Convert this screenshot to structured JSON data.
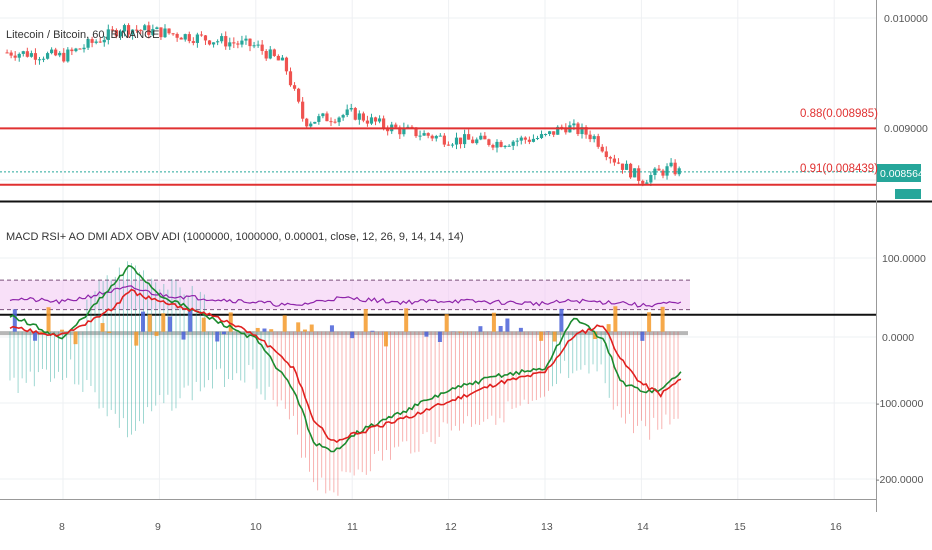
{
  "top_pane": {
    "title": "Litecoin / Bitcoin, 60, BINANCE",
    "price_ticks": [
      "0.010000",
      "0.009000"
    ],
    "last_price": "0.008564",
    "fib_upper": "0.88(0.008985)",
    "fib_lower": "0.91(0.008439)"
  },
  "bottom_pane": {
    "title": "MACD RSI+ AO DMI ADX OBV ADI (1000000, 1000000, 0.00001, close, 12, 26, 9, 14, 14, 14)",
    "ticks": [
      "100.0000",
      "0.0000",
      "-100.0000",
      "-200.0000"
    ]
  },
  "x_axis": {
    "ticks": [
      "8",
      "9",
      "10",
      "11",
      "12",
      "13",
      "14",
      "15",
      "16"
    ]
  },
  "colors": {
    "up": "#26a69a",
    "down": "#ef5350",
    "fib_line": "#e03131",
    "price_badge": "#26a69a",
    "pivot_line": "#26a69a",
    "band_fill": "#f3c6f3",
    "macd_line": "#1b8a2e",
    "signal_line": "#e0201f",
    "rsi_line": "#8e24aa"
  },
  "chart_data": [
    {
      "type": "line",
      "title": "Litecoin / Bitcoin, 60, BINANCE",
      "x": [
        "7.5",
        "8",
        "8.5",
        "8.6",
        "9",
        "9.5",
        "10",
        "10.3",
        "10.5",
        "11",
        "11.3",
        "11.5",
        "12",
        "12.5",
        "13",
        "13.2",
        "13.5",
        "13.7",
        "14",
        "14.3",
        "14.4"
      ],
      "series": [
        {
          "values": [
            0.00972,
            0.00968,
            0.0099,
            0.00996,
            0.00992,
            0.00985,
            0.00978,
            0.0096,
            0.00905,
            0.00913,
            0.00902,
            0.00897,
            0.00888,
            0.00885,
            0.0089,
            0.00901,
            0.00891,
            0.0087,
            0.00849,
            0.0086,
            0.00856
          ]
        }
      ],
      "ylim": [
        0.00835,
        0.01015
      ],
      "yticks": [
        0.01,
        0.009
      ],
      "hlines": [
        0.008985,
        0.008439,
        0.008564
      ]
    },
    {
      "type": "line",
      "title": "MACD RSI+ AO DMI ADX OBV ADI (1000000, 1000000, 0.00001, close, 12, 26, 9, 14, 14, 14)",
      "x": [
        "7.5",
        "8",
        "8.5",
        "8.7",
        "9",
        "9.5",
        "10",
        "10.4",
        "10.6",
        "10.8",
        "11",
        "11.5",
        "12",
        "12.5",
        "13",
        "13.3",
        "13.6",
        "13.8",
        "14",
        "14.2",
        "14.4"
      ],
      "series": [
        {
          "values": [
            20,
            -10,
            60,
            90,
            50,
            20,
            -10,
            -80,
            -150,
            -165,
            -140,
            -110,
            -80,
            -60,
            -50,
            20,
            -10,
            -70,
            -80,
            -80,
            -55
          ]
        },
        {
          "values": [
            5,
            -5,
            30,
            55,
            40,
            25,
            -5,
            -50,
            -120,
            -150,
            -140,
            -120,
            -95,
            -70,
            -55,
            -5,
            10,
            -40,
            -70,
            -85,
            -65
          ]
        },
        {
          "values": [
            45,
            40,
            55,
            60,
            50,
            45,
            40,
            35,
            40,
            45,
            45,
            40,
            42,
            40,
            38,
            42,
            40,
            40,
            35,
            38,
            38
          ]
        }
      ],
      "ylim": [
        -230,
        170
      ],
      "yticks": [
        100,
        0,
        -100,
        -200
      ]
    }
  ]
}
